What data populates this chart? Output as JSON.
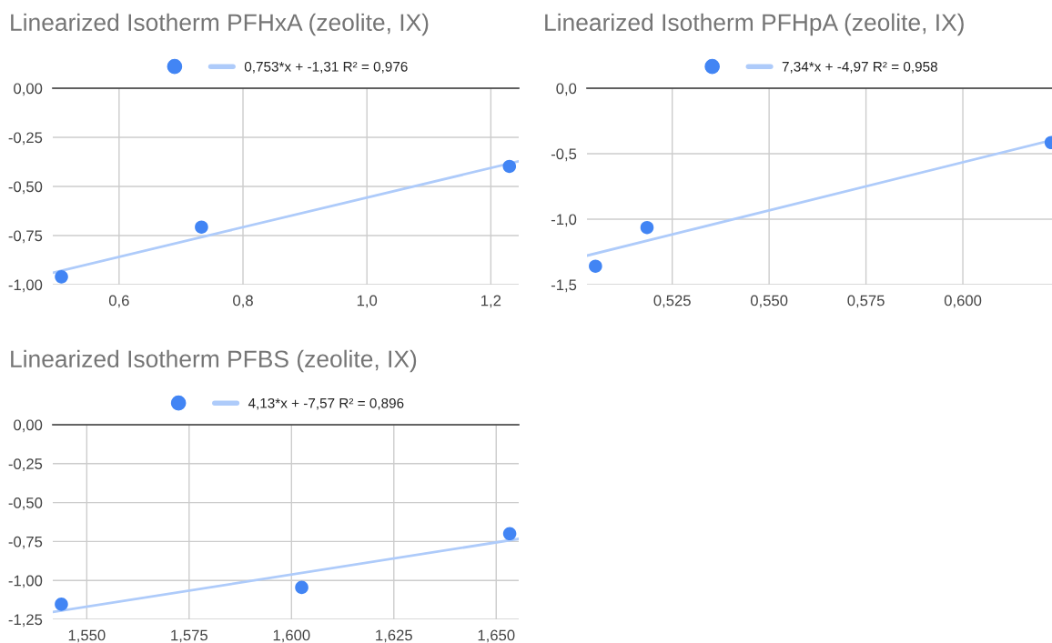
{
  "chart_data": [
    {
      "type": "scatter",
      "title": "Linearized Isotherm PFHxA (zeolite, IX)",
      "legend": "top",
      "grid": true,
      "marker": "circle",
      "xlim": [
        0.493,
        1.245
      ],
      "ylim": [
        -1.0,
        0.0
      ],
      "xticks": [
        {
          "value": 0.6,
          "label": "0,6"
        },
        {
          "value": 0.8,
          "label": "0,8"
        },
        {
          "value": 1.0,
          "label": "1,0"
        },
        {
          "value": 1.2,
          "label": "1,2"
        }
      ],
      "yticks": [
        {
          "value": 0,
          "label": "0,00"
        },
        {
          "value": -0.25,
          "label": "-0,25"
        },
        {
          "value": -0.5,
          "label": "-0,50"
        },
        {
          "value": -0.75,
          "label": "-0,75"
        },
        {
          "value": -1.0,
          "label": "-1,00"
        }
      ],
      "series": [
        {
          "color": "#4285f4",
          "x": [
            0.507,
            0.733,
            1.23
          ],
          "values": [
            -0.96,
            -0.707,
            -0.398
          ]
        },
        {
          "type": "line",
          "name": "0,753*x + -1,31 R² = 0,976",
          "color": "#aecbfa",
          "marker": "none",
          "x": [
            0.493,
            1.245
          ],
          "values": [
            -0.939,
            -0.372
          ]
        }
      ]
    },
    {
      "type": "scatter",
      "title": "Linearized Isotherm PFHpA (zeolite, IX)",
      "legend": "top",
      "grid": true,
      "marker": "circle",
      "xlim": [
        0.503,
        0.623
      ],
      "ylim": [
        -1.5,
        0.0
      ],
      "xticks": [
        {
          "value": 0.525,
          "label": "0,525"
        },
        {
          "value": 0.55,
          "label": "0,550"
        },
        {
          "value": 0.575,
          "label": "0,575"
        },
        {
          "value": 0.6,
          "label": "0,600"
        }
      ],
      "yticks": [
        {
          "value": 0,
          "label": "0,0"
        },
        {
          "value": -0.5,
          "label": "-0,5"
        },
        {
          "value": -1.0,
          "label": "-1,0"
        },
        {
          "value": -1.5,
          "label": "-1,5"
        }
      ],
      "series": [
        {
          "color": "#4285f4",
          "x": [
            0.5052,
            0.5185,
            0.6228
          ],
          "values": [
            -1.359,
            -1.064,
            -0.415
          ]
        },
        {
          "type": "line",
          "name": "7,34*x + -4,97 R² = 0,958",
          "color": "#aecbfa",
          "marker": "none",
          "x": [
            0.503,
            0.623
          ],
          "values": [
            -1.278,
            -0.397
          ]
        }
      ]
    },
    {
      "type": "scatter",
      "title": "Linearized Isotherm PFBS (zeolite, IX)",
      "legend": "top",
      "grid": true,
      "marker": "circle",
      "xlim": [
        1.5417,
        1.6555
      ],
      "ylim": [
        -1.25,
        0.0
      ],
      "xticks": [
        {
          "value": 1.55,
          "label": "1,550"
        },
        {
          "value": 1.575,
          "label": "1,575"
        },
        {
          "value": 1.6,
          "label": "1,600"
        },
        {
          "value": 1.625,
          "label": "1,625"
        },
        {
          "value": 1.65,
          "label": "1,650"
        }
      ],
      "yticks": [
        {
          "value": 0,
          "label": "0,00"
        },
        {
          "value": -0.25,
          "label": "-0,25"
        },
        {
          "value": -0.5,
          "label": "-0,50"
        },
        {
          "value": -0.75,
          "label": "-0,75"
        },
        {
          "value": -1.0,
          "label": "-1,00"
        },
        {
          "value": -1.25,
          "label": "-1,25"
        }
      ],
      "series": [
        {
          "color": "#4285f4",
          "x": [
            1.5438,
            1.6025,
            1.6533
          ],
          "values": [
            -1.153,
            -1.045,
            -0.7
          ]
        },
        {
          "type": "line",
          "name": "4,13*x + -7,57 R² = 0,896",
          "color": "#aecbfa",
          "marker": "none",
          "x": [
            1.5417,
            1.6555
          ],
          "values": [
            -1.203,
            -0.733
          ]
        }
      ]
    }
  ]
}
